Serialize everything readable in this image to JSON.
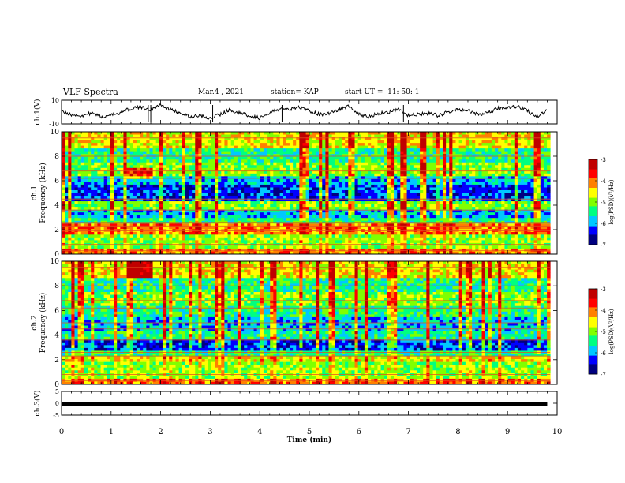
{
  "header": {
    "title": "VLF Spectra",
    "date": "Mar.4 , 2021",
    "station": "station= KAP",
    "start": "start UT =  11: 50: 1"
  },
  "chart_data": [
    {
      "type": "line",
      "panel": "ch1-waveform",
      "ylabel": "ch.1(V)",
      "ylim": [
        -10,
        10
      ],
      "yticks": [
        "10",
        "-10"
      ],
      "x": [
        0,
        0.2,
        0.4,
        0.6,
        0.8,
        1.0,
        1.2,
        1.4,
        1.6,
        1.8,
        2.0,
        2.2,
        2.4,
        2.6,
        2.8,
        3.0,
        3.2,
        3.4,
        3.6,
        3.8,
        4.0,
        4.2,
        4.4,
        4.6,
        4.8,
        5.0,
        5.2,
        5.4,
        5.6,
        5.8,
        6.0,
        6.2,
        6.4,
        6.6,
        6.8,
        7.0,
        7.2,
        7.4,
        7.6,
        7.8,
        8.0,
        8.2,
        8.4,
        8.6,
        8.8,
        9.0,
        9.2,
        9.4,
        9.6,
        9.8
      ],
      "values": [
        0,
        -2,
        -3,
        -1,
        -4,
        -3,
        0,
        3,
        4,
        2,
        6,
        2,
        -1,
        -4,
        -3,
        -5,
        -2,
        2,
        -1,
        -3,
        -5,
        -1,
        3,
        2,
        4,
        1,
        -2,
        -1,
        2,
        5,
        -2,
        -4,
        -1,
        0,
        2,
        -3,
        -2,
        -1,
        -3,
        0,
        2,
        1,
        -2,
        -1,
        3,
        4,
        5,
        1,
        -4,
        2
      ]
    },
    {
      "type": "heatmap",
      "panel": "ch1-spectrogram",
      "ylabel": "ch.1 Frequency (kHz)",
      "ylim": [
        0,
        10
      ],
      "yticks": [
        "0",
        "2",
        "4",
        "6",
        "8",
        "10"
      ],
      "xlim": [
        0,
        10
      ],
      "colorbar": {
        "label": "log(PSD)(V²/Hz)",
        "range": [
          -7,
          -3
        ],
        "ticks": [
          "-3",
          "-4",
          "-5",
          "-6",
          "-7"
        ]
      }
    },
    {
      "type": "heatmap",
      "panel": "ch2-spectrogram",
      "ylabel": "ch.2 Frequency (kHz)",
      "ylim": [
        0,
        10
      ],
      "yticks": [
        "0",
        "2",
        "4",
        "6",
        "8",
        "10"
      ],
      "xlim": [
        0,
        10
      ],
      "colorbar": {
        "label": "log(PSD)(V²/Hz)",
        "range": [
          -7,
          -3
        ],
        "ticks": [
          "-3",
          "-4",
          "-5",
          "-6",
          "-7"
        ]
      }
    },
    {
      "type": "line",
      "panel": "ch3-waveform",
      "ylabel": "ch.3(V)",
      "ylim": [
        -5,
        5
      ],
      "yticks": [
        "5",
        "0",
        "-5"
      ],
      "x": [
        0,
        9.8
      ],
      "values": [
        -0.3,
        -0.3
      ]
    }
  ],
  "xaxis": {
    "label": "Time  (min)",
    "xlim": [
      0,
      10
    ],
    "ticks": [
      "0",
      "1",
      "2",
      "3",
      "4",
      "5",
      "6",
      "7",
      "8",
      "9",
      "10"
    ]
  },
  "colors": {
    "colormap": [
      "#000080",
      "#0000ff",
      "#00c8ff",
      "#00ff80",
      "#80ff00",
      "#ffff00",
      "#ff8000",
      "#ff0000",
      "#c00000"
    ]
  }
}
